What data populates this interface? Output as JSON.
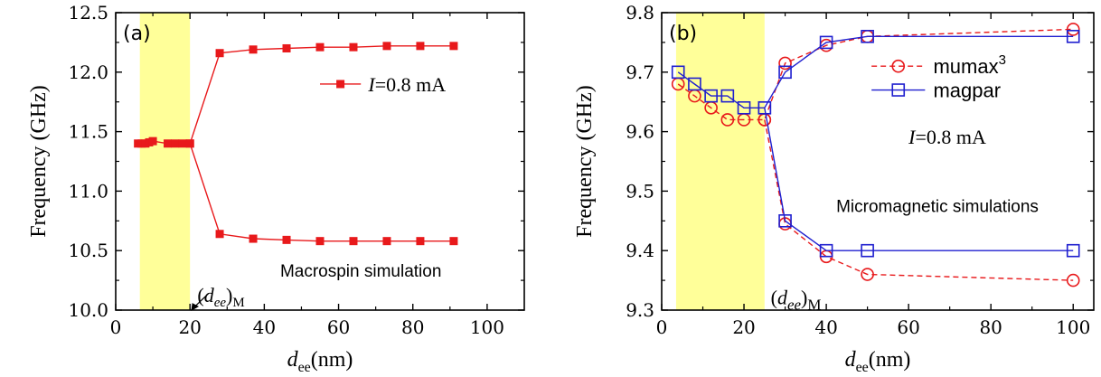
{
  "chart_data": [
    {
      "panel": "(a)",
      "type": "line",
      "xlabel": "d",
      "xlabel_sub": "ee",
      "xlabel_unit": "(nm)",
      "ylabel": "Frequency (GHz)",
      "xlim": [
        0,
        110
      ],
      "ylim": [
        10.0,
        12.5
      ],
      "xticks": [
        0,
        20,
        40,
        60,
        80,
        100
      ],
      "yticks": [
        10.0,
        10.5,
        11.0,
        11.5,
        12.0,
        12.5
      ],
      "highlight_region": [
        6.5,
        20
      ],
      "highlight_color": "#ffff99",
      "series": [
        {
          "name": "=0.8 mA",
          "name_italic": "I",
          "color": "#e8191b",
          "marker": "filled-square",
          "line": "solid",
          "x": [
            6,
            7,
            8,
            9,
            10,
            14,
            16,
            18,
            20,
            28,
            37,
            46,
            55,
            64,
            73,
            82,
            91
          ],
          "y": [
            11.4,
            11.4,
            11.4,
            11.41,
            11.42,
            11.4,
            11.4,
            11.4,
            11.4,
            12.16,
            12.19,
            12.2,
            12.21,
            12.21,
            12.22,
            12.22,
            12.22
          ]
        },
        {
          "name": "",
          "color": "#e8191b",
          "marker": "filled-square",
          "line": "solid",
          "x": [
            20,
            28,
            37,
            46,
            55,
            64,
            73,
            82,
            91
          ],
          "y": [
            11.4,
            10.64,
            10.6,
            10.59,
            10.58,
            10.58,
            10.58,
            10.58,
            10.58
          ]
        }
      ],
      "annotations": {
        "critical": "(d",
        "critical_sub_ee": "ee",
        "critical_close": ")",
        "critical_sub_M": "M",
        "method": "Macrospin simulation"
      }
    },
    {
      "panel": "(b)",
      "type": "line",
      "xlabel": "d",
      "xlabel_sub": "ee",
      "xlabel_unit": "(nm)",
      "ylabel": "Frequency (GHz)",
      "xlim": [
        0,
        105
      ],
      "ylim": [
        9.3,
        9.8
      ],
      "xticks": [
        0,
        20,
        40,
        60,
        80,
        100
      ],
      "yticks": [
        9.3,
        9.4,
        9.5,
        9.6,
        9.7,
        9.8
      ],
      "highlight_region": [
        3.5,
        25
      ],
      "highlight_color": "#ffff99",
      "series": [
        {
          "name": "mumax",
          "name_sup": "3",
          "color": "#e8191b",
          "marker": "open-circle",
          "line": "dashed",
          "x": [
            4,
            8,
            12,
            16,
            20,
            25,
            30,
            40,
            50,
            100
          ],
          "y": [
            9.68,
            9.66,
            9.64,
            9.62,
            9.62,
            9.62,
            9.715,
            9.745,
            9.76,
            9.772
          ]
        },
        {
          "name": "",
          "color": "#e8191b",
          "marker": "open-circle",
          "line": "dashed",
          "x": [
            25,
            30,
            40,
            50,
            100
          ],
          "y": [
            9.62,
            9.445,
            9.39,
            9.36,
            9.35
          ]
        },
        {
          "name": "magpar",
          "color": "#1f1fcf",
          "marker": "open-square",
          "line": "solid",
          "x": [
            4,
            8,
            12,
            16,
            20,
            25,
            30,
            40,
            50,
            100
          ],
          "y": [
            9.7,
            9.68,
            9.66,
            9.66,
            9.64,
            9.64,
            9.7,
            9.75,
            9.76,
            9.76
          ]
        },
        {
          "name": "",
          "color": "#1f1fcf",
          "marker": "open-square",
          "line": "solid",
          "x": [
            25,
            30,
            40,
            50,
            100
          ],
          "y": [
            9.64,
            9.45,
            9.4,
            9.4,
            9.4
          ]
        }
      ],
      "annotations": {
        "current_italic": "I",
        "current": "=0.8 mA",
        "method": "Micromagnetic simulations",
        "critical": "(d",
        "critical_sub_ee": "ee",
        "critical_close": ")",
        "critical_sub_M": "M"
      }
    }
  ]
}
